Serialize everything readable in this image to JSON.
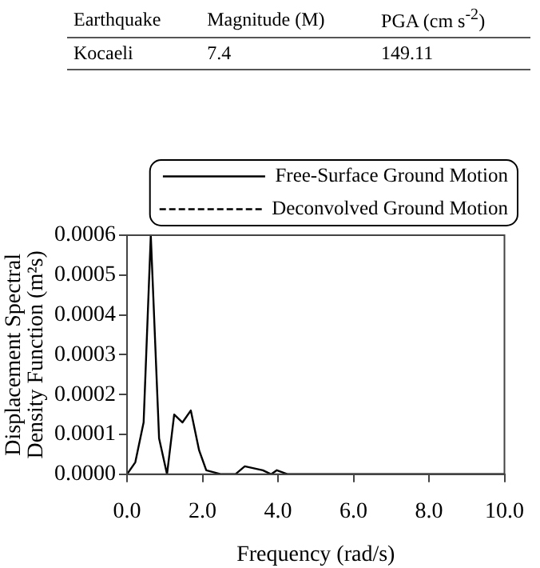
{
  "chart_data": {
    "type": "line",
    "xlabel": "Frequency (rad/s)",
    "ylabel": "Displacement Spectral Density Function (m²s)",
    "annotations": [
      "Earthquake",
      "Magnitude (M)",
      "PGA (cm s$^{-2}$)",
      "Kocaeli",
      "7.4",
      "149.11"
    ],
    "x": [
      0,
      0.22,
      0.44,
      0.63,
      0.85,
      1.06,
      1.25,
      1.47,
      1.69,
      1.91,
      2.1,
      2.5,
      2.87,
      3.12,
      3.6,
      3.82,
      3.97,
      4.26,
      5.96,
      10
    ],
    "series": [
      {
        "name": "Free-Surface Ground Motion",
        "color": "#000000",
        "line_style": "solid",
        "values": [
          0,
          3e-05,
          0.00013,
          0.0006,
          9e-05,
          0,
          0.00015,
          0.00013,
          0.00016,
          6e-05,
          1e-05,
          0,
          0,
          2e-05,
          1e-05,
          0,
          1e-05,
          0,
          0,
          0
        ]
      },
      {
        "name": "Deconvolved Ground Motion",
        "color": "#000000",
        "line_style": "dashed",
        "values": [
          null,
          null,
          null,
          null,
          null,
          null,
          null,
          null,
          null,
          null,
          null,
          null,
          null,
          null,
          null,
          null,
          null,
          null,
          null,
          null
        ]
      }
    ],
    "xlim": [
      0,
      10
    ],
    "xticks": [
      {
        "value": 0,
        "label": "0.0"
      },
      {
        "value": 2,
        "label": "2.0"
      },
      {
        "value": 4,
        "label": "4.0"
      },
      {
        "value": 6,
        "label": "6.0"
      },
      {
        "value": 8,
        "label": "8.0"
      },
      {
        "value": 10,
        "label": "10.0"
      }
    ],
    "ylim": [
      0,
      0.0006
    ],
    "yticks": [
      {
        "value": 0,
        "label": "0.0000"
      },
      {
        "value": 0.0001,
        "label": "0.0001"
      },
      {
        "value": 0.0002,
        "label": "0.0002"
      },
      {
        "value": 0.0003,
        "label": "0.0003"
      },
      {
        "value": 0.0004,
        "label": "0.0004"
      },
      {
        "value": 0.0005,
        "label": "0.0005"
      },
      {
        "value": 0.0006,
        "label": "0.0006"
      }
    ],
    "grid": false,
    "legend": "top right",
    "marker": "none"
  }
}
